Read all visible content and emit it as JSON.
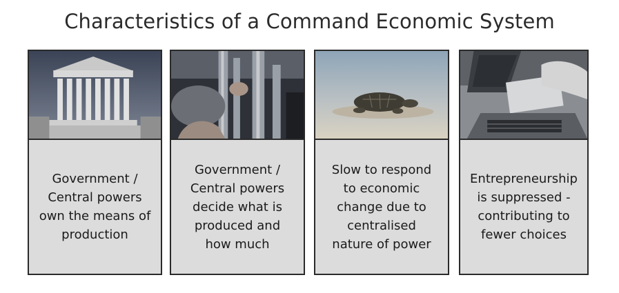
{
  "title": "Characteristics of a Command Economic System",
  "cards": [
    {
      "image": "courthouse-columns-photo",
      "text": "Government /\nCentral powers\nown the means of\nproduction"
    },
    {
      "image": "factory-worker-photo",
      "text": "Government /\nCentral powers\ndecide what is\nproduced and\nhow much"
    },
    {
      "image": "turtle-photo",
      "text": "Slow to respond\nto economic\nchange due to\ncentralised\nnature of power"
    },
    {
      "image": "laptop-desk-photo",
      "text": "Entrepreneurship\nis suppressed -\ncontributing to\nfewer choices"
    }
  ]
}
